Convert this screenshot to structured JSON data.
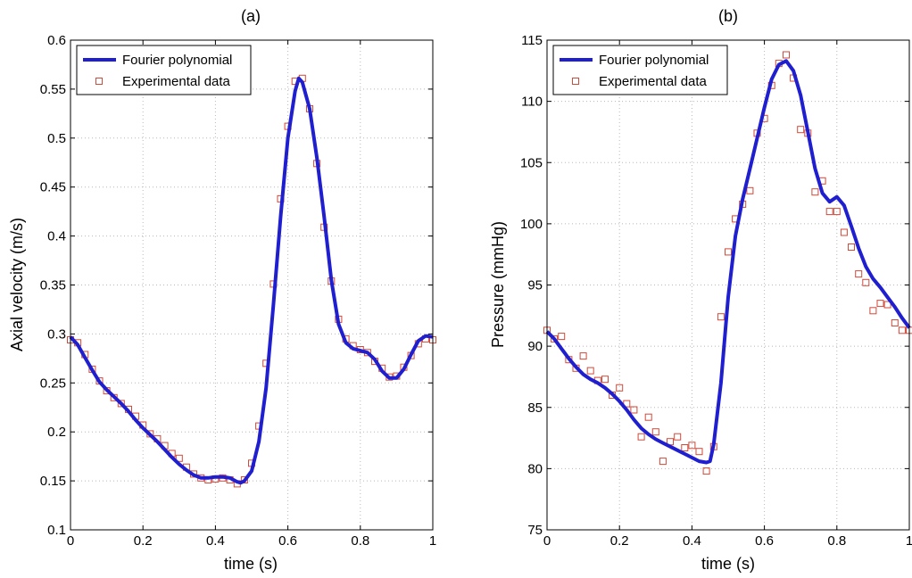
{
  "chart_data": [
    {
      "type": "line",
      "title": "(a)",
      "xlabel": "time (s)",
      "ylabel": "Axial velocity (m/s)",
      "xlim": [
        0,
        1
      ],
      "ylim": [
        0.1,
        0.6
      ],
      "xticks": [
        "0",
        "0.2",
        "0.4",
        "0.6",
        "0.8",
        "1"
      ],
      "yticks": [
        "0.1",
        "0.15",
        "0.2",
        "0.25",
        "0.3",
        "0.35",
        "0.4",
        "0.45",
        "0.5",
        "0.55",
        "0.6"
      ],
      "grid": true,
      "legend": "top-left",
      "colors": {
        "line": "#1f1fd0",
        "markers": "#d04a3a"
      },
      "series": [
        {
          "name": "Fourier polynomial",
          "kind": "line",
          "x": [
            0,
            0.02,
            0.04,
            0.06,
            0.08,
            0.1,
            0.12,
            0.14,
            0.16,
            0.18,
            0.2,
            0.22,
            0.24,
            0.26,
            0.28,
            0.3,
            0.32,
            0.34,
            0.36,
            0.38,
            0.4,
            0.42,
            0.44,
            0.46,
            0.47,
            0.48,
            0.5,
            0.52,
            0.54,
            0.56,
            0.58,
            0.6,
            0.62,
            0.63,
            0.64,
            0.66,
            0.68,
            0.7,
            0.72,
            0.74,
            0.76,
            0.78,
            0.8,
            0.82,
            0.84,
            0.86,
            0.88,
            0.9,
            0.92,
            0.94,
            0.96,
            0.98,
            1.0
          ],
          "y": [
            0.297,
            0.289,
            0.276,
            0.263,
            0.251,
            0.243,
            0.236,
            0.229,
            0.221,
            0.212,
            0.204,
            0.197,
            0.19,
            0.182,
            0.174,
            0.167,
            0.161,
            0.156,
            0.153,
            0.153,
            0.154,
            0.154,
            0.153,
            0.149,
            0.148,
            0.15,
            0.16,
            0.19,
            0.245,
            0.33,
            0.42,
            0.5,
            0.548,
            0.561,
            0.557,
            0.53,
            0.48,
            0.42,
            0.355,
            0.31,
            0.291,
            0.285,
            0.283,
            0.281,
            0.274,
            0.262,
            0.255,
            0.255,
            0.264,
            0.279,
            0.293,
            0.298,
            0.297
          ]
        },
        {
          "name": "Experimental data",
          "kind": "markers",
          "x": [
            0.0,
            0.02,
            0.04,
            0.06,
            0.08,
            0.1,
            0.12,
            0.14,
            0.16,
            0.18,
            0.2,
            0.22,
            0.24,
            0.26,
            0.28,
            0.3,
            0.32,
            0.34,
            0.36,
            0.38,
            0.4,
            0.42,
            0.44,
            0.46,
            0.48,
            0.5,
            0.52,
            0.54,
            0.56,
            0.58,
            0.6,
            0.62,
            0.64,
            0.66,
            0.68,
            0.7,
            0.72,
            0.74,
            0.76,
            0.78,
            0.8,
            0.82,
            0.84,
            0.86,
            0.88,
            0.9,
            0.92,
            0.94,
            0.96,
            0.98,
            1.0
          ],
          "y": [
            0.294,
            0.291,
            0.279,
            0.264,
            0.252,
            0.242,
            0.235,
            0.229,
            0.223,
            0.216,
            0.207,
            0.198,
            0.193,
            0.186,
            0.178,
            0.173,
            0.164,
            0.157,
            0.153,
            0.151,
            0.152,
            0.153,
            0.151,
            0.147,
            0.151,
            0.168,
            0.206,
            0.27,
            0.351,
            0.438,
            0.512,
            0.558,
            0.561,
            0.53,
            0.474,
            0.409,
            0.354,
            0.315,
            0.295,
            0.288,
            0.284,
            0.281,
            0.272,
            0.265,
            0.256,
            0.257,
            0.266,
            0.278,
            0.29,
            0.295,
            0.294
          ]
        }
      ]
    },
    {
      "type": "line",
      "title": "(b)",
      "xlabel": "time (s)",
      "ylabel": "Pressure (mmHg)",
      "xlim": [
        0,
        1
      ],
      "ylim": [
        75,
        115
      ],
      "xticks": [
        "0",
        "0.2",
        "0.4",
        "0.6",
        "0.8",
        "1"
      ],
      "yticks": [
        "75",
        "80",
        "85",
        "90",
        "95",
        "100",
        "105",
        "110",
        "115"
      ],
      "grid": true,
      "legend": "top-left",
      "colors": {
        "line": "#1f1fd0",
        "markers": "#d04a3a"
      },
      "series": [
        {
          "name": "Fourier polynomial",
          "kind": "line",
          "x": [
            0,
            0.02,
            0.04,
            0.06,
            0.08,
            0.1,
            0.12,
            0.14,
            0.16,
            0.18,
            0.2,
            0.22,
            0.24,
            0.26,
            0.28,
            0.3,
            0.32,
            0.34,
            0.36,
            0.38,
            0.4,
            0.42,
            0.44,
            0.45,
            0.46,
            0.48,
            0.5,
            0.52,
            0.54,
            0.56,
            0.58,
            0.6,
            0.62,
            0.64,
            0.66,
            0.68,
            0.7,
            0.72,
            0.74,
            0.76,
            0.78,
            0.8,
            0.82,
            0.84,
            0.86,
            0.88,
            0.9,
            0.92,
            0.94,
            0.96,
            0.98,
            1.0
          ],
          "y": [
            91.2,
            90.6,
            89.8,
            89.0,
            88.3,
            87.7,
            87.3,
            87.0,
            86.6,
            86.1,
            85.5,
            84.8,
            84.0,
            83.3,
            82.8,
            82.4,
            82.1,
            81.8,
            81.5,
            81.2,
            80.9,
            80.6,
            80.5,
            80.6,
            82.0,
            87.0,
            94.0,
            99.0,
            102.0,
            104.5,
            107.0,
            109.5,
            111.8,
            113.0,
            113.3,
            112.5,
            110.5,
            107.5,
            104.5,
            102.5,
            101.8,
            102.2,
            101.5,
            99.8,
            98.0,
            96.5,
            95.5,
            94.8,
            94.0,
            93.2,
            92.3,
            91.5
          ]
        },
        {
          "name": "Experimental data",
          "kind": "markers",
          "x": [
            0.0,
            0.02,
            0.04,
            0.06,
            0.08,
            0.1,
            0.12,
            0.14,
            0.16,
            0.18,
            0.2,
            0.22,
            0.24,
            0.26,
            0.28,
            0.3,
            0.32,
            0.34,
            0.36,
            0.38,
            0.4,
            0.42,
            0.44,
            0.46,
            0.48,
            0.5,
            0.52,
            0.54,
            0.56,
            0.58,
            0.6,
            0.62,
            0.64,
            0.66,
            0.68,
            0.7,
            0.72,
            0.74,
            0.76,
            0.78,
            0.8,
            0.82,
            0.84,
            0.86,
            0.88,
            0.9,
            0.92,
            0.94,
            0.96,
            0.98,
            1.0
          ],
          "y": [
            91.3,
            90.6,
            90.8,
            88.9,
            88.2,
            89.2,
            88.0,
            87.2,
            87.3,
            86.0,
            86.6,
            85.3,
            84.8,
            82.6,
            84.2,
            83.0,
            80.6,
            82.2,
            82.6,
            81.7,
            81.9,
            81.4,
            79.8,
            81.8,
            92.4,
            97.7,
            100.4,
            101.6,
            102.7,
            107.4,
            108.6,
            111.3,
            113.1,
            113.8,
            111.9,
            107.7,
            107.4,
            102.6,
            103.5,
            101.0,
            101.0,
            99.3,
            98.1,
            95.9,
            95.2,
            92.9,
            93.5,
            93.4,
            91.9,
            91.3,
            91.3
          ]
        }
      ]
    }
  ]
}
